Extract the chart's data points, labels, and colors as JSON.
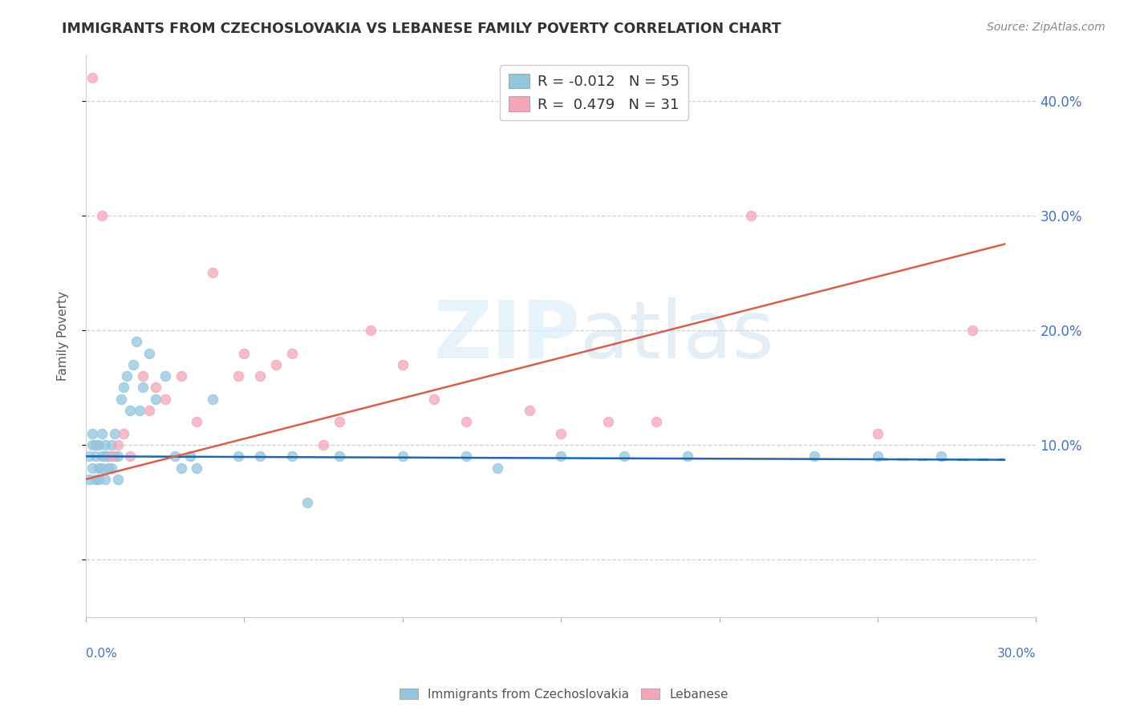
{
  "title": "IMMIGRANTS FROM CZECHOSLOVAKIA VS LEBANESE FAMILY POVERTY CORRELATION CHART",
  "source": "Source: ZipAtlas.com",
  "ylabel": "Family Poverty",
  "blue_color": "#92c5de",
  "pink_color": "#f4a6b8",
  "blue_line_color": "#2166ac",
  "pink_line_color": "#d6604d",
  "background_color": "#ffffff",
  "xlim": [
    0.0,
    0.3
  ],
  "ylim": [
    -0.05,
    0.44
  ],
  "y_ticks": [
    0.0,
    0.1,
    0.2,
    0.3,
    0.4
  ],
  "y_tick_labels": [
    "",
    "10.0%",
    "20.0%",
    "30.0%",
    "40.0%"
  ],
  "blue_scatter_x": [
    0.001,
    0.001,
    0.002,
    0.002,
    0.002,
    0.003,
    0.003,
    0.003,
    0.004,
    0.004,
    0.004,
    0.005,
    0.005,
    0.005,
    0.006,
    0.006,
    0.006,
    0.007,
    0.007,
    0.008,
    0.008,
    0.009,
    0.009,
    0.01,
    0.01,
    0.011,
    0.012,
    0.013,
    0.014,
    0.015,
    0.016,
    0.017,
    0.018,
    0.02,
    0.022,
    0.025,
    0.028,
    0.03,
    0.033,
    0.035,
    0.04,
    0.048,
    0.055,
    0.065,
    0.07,
    0.08,
    0.1,
    0.12,
    0.13,
    0.15,
    0.17,
    0.19,
    0.23,
    0.25,
    0.27
  ],
  "blue_scatter_y": [
    0.07,
    0.09,
    0.08,
    0.1,
    0.11,
    0.07,
    0.09,
    0.1,
    0.07,
    0.08,
    0.1,
    0.08,
    0.09,
    0.11,
    0.07,
    0.09,
    0.1,
    0.08,
    0.09,
    0.08,
    0.1,
    0.09,
    0.11,
    0.07,
    0.09,
    0.14,
    0.15,
    0.16,
    0.13,
    0.17,
    0.19,
    0.13,
    0.15,
    0.18,
    0.14,
    0.16,
    0.09,
    0.08,
    0.09,
    0.08,
    0.14,
    0.09,
    0.09,
    0.09,
    0.05,
    0.09,
    0.09,
    0.09,
    0.08,
    0.09,
    0.09,
    0.09,
    0.09,
    0.09,
    0.09
  ],
  "pink_scatter_x": [
    0.002,
    0.005,
    0.008,
    0.01,
    0.012,
    0.014,
    0.018,
    0.02,
    0.022,
    0.025,
    0.03,
    0.035,
    0.04,
    0.048,
    0.05,
    0.055,
    0.06,
    0.065,
    0.075,
    0.08,
    0.09,
    0.1,
    0.11,
    0.12,
    0.14,
    0.15,
    0.165,
    0.18,
    0.21,
    0.25,
    0.28
  ],
  "pink_scatter_y": [
    0.42,
    0.3,
    0.09,
    0.1,
    0.11,
    0.09,
    0.16,
    0.13,
    0.15,
    0.14,
    0.16,
    0.12,
    0.25,
    0.16,
    0.18,
    0.16,
    0.17,
    0.18,
    0.1,
    0.12,
    0.2,
    0.17,
    0.14,
    0.12,
    0.13,
    0.11,
    0.12,
    0.12,
    0.3,
    0.11,
    0.2
  ],
  "blue_line_x": [
    0.0,
    0.29
  ],
  "blue_line_y": [
    0.09,
    0.087
  ],
  "pink_line_x": [
    0.0,
    0.29
  ],
  "pink_line_y": [
    0.07,
    0.275
  ]
}
